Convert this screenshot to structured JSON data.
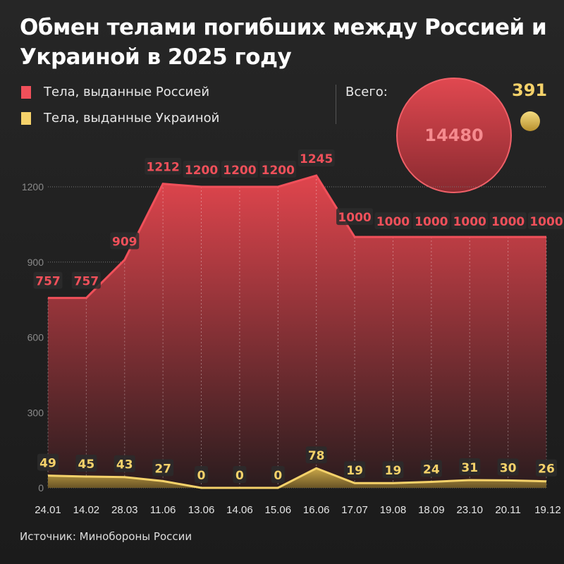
{
  "title": "Обмен телами погибших между Россией и Украиной в 2025 году",
  "legend": [
    {
      "label": "Тела, выданные Россией",
      "color": "#f0505a"
    },
    {
      "label": "Тела, выданные Украиной",
      "color": "#f5d26a"
    }
  ],
  "totals": {
    "label": "Всего:",
    "russia": "14480",
    "ukraine": "391"
  },
  "source": "Источник: Минобороны России",
  "chart_data": {
    "type": "area",
    "categories": [
      "24.01",
      "14.02",
      "28.03",
      "11.06",
      "13.06",
      "14.06",
      "15.06",
      "16.06",
      "17.07",
      "19.08",
      "18.09",
      "23.10",
      "20.11",
      "19.12"
    ],
    "series": [
      {
        "name": "Тела, выданные Россией",
        "color": "#f0505a",
        "values": [
          757,
          757,
          909,
          1212,
          1200,
          1200,
          1200,
          1245,
          1000,
          1000,
          1000,
          1000,
          1000,
          1000
        ]
      },
      {
        "name": "Тела, выданные Украиной",
        "color": "#f5d26a",
        "values": [
          49,
          45,
          43,
          27,
          0,
          0,
          0,
          78,
          19,
          19,
          24,
          31,
          30,
          26
        ]
      }
    ],
    "yticks": [
      0,
      300,
      600,
      900,
      1200
    ],
    "ylim": [
      0,
      1200
    ],
    "grid": true
  }
}
